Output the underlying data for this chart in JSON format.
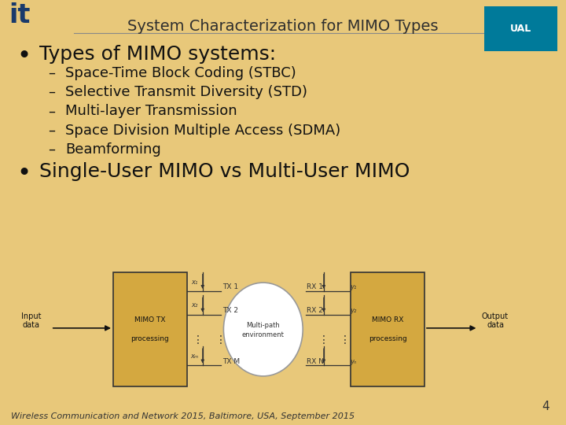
{
  "title": "System Characterization for MIMO Types",
  "slide_bg": "#E8C87A",
  "title_fontsize": 14,
  "title_color": "#2F2F2F",
  "bullet1": "Types of MIMO systems:",
  "bullet1_fontsize": 18,
  "sub_items": [
    "Space-Time Block Coding (STBC)",
    "Selective Transmit Diversity (STD)",
    "Multi-layer Transmission",
    "Space Division Multiple Access (SDMA)",
    "Beamforming"
  ],
  "sub_fontsize": 13,
  "bullet2": "Single-User MIMO vs Multi-User MIMO",
  "bullet2_fontsize": 18,
  "footer": "Wireless Communication and Network 2015, Baltimore, USA, September 2015",
  "footer_fontsize": 8,
  "page_number": "4",
  "box_facecolor": "#D4A840",
  "box_edgecolor": "#333333",
  "ellipse_facecolor": "#FFFFFF",
  "ellipse_edgecolor": "#999999",
  "line_color": "#333333",
  "text_color": "#111111"
}
